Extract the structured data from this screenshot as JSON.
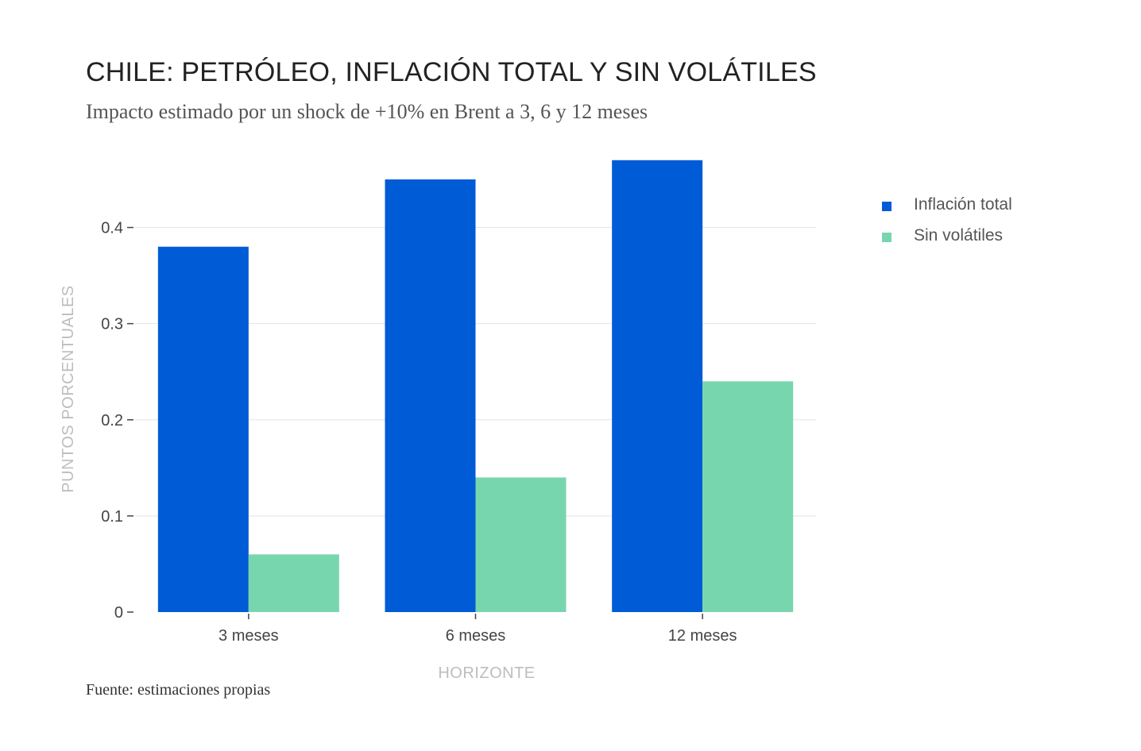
{
  "header": {
    "title": "CHILE: PETRÓLEO, INFLACIÓN TOTAL Y SIN VOLÁTILES",
    "subtitle": "Impacto estimado por un shock de +10% en Brent a 3, 6 y 12 meses"
  },
  "footer": {
    "source": "Fuente: estimaciones propias"
  },
  "chart_data": {
    "type": "bar",
    "title": "CHILE: PETRÓLEO, INFLACIÓN TOTAL Y SIN VOLÁTILES",
    "subtitle": "Impacto estimado por un shock de +10% en Brent a 3, 6 y 12 meses",
    "xlabel": "HORIZONTE",
    "ylabel": "PUNTOS PORCENTUALES",
    "categories": [
      "3 meses",
      "6 meses",
      "12 meses"
    ],
    "series": [
      {
        "name": "Inflación total",
        "values": [
          0.38,
          0.45,
          0.47
        ],
        "color": "#005bd6"
      },
      {
        "name": "Sin volátiles",
        "values": [
          0.06,
          0.14,
          0.24
        ],
        "color": "#78d6ae"
      }
    ],
    "ylim": [
      0,
      0.45
    ],
    "yticks": [
      0,
      0.1,
      0.2,
      0.3,
      0.4
    ],
    "ytick_labels": [
      "0",
      "0.1",
      "0.2",
      "0.3",
      "0.4"
    ],
    "grid": true,
    "legend_position": "top-right"
  }
}
